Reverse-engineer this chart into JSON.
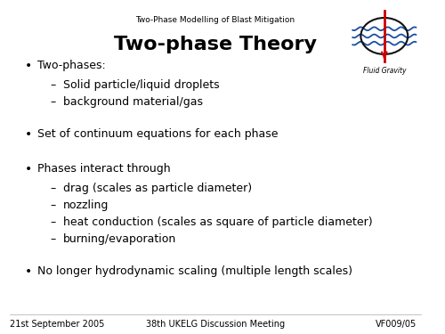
{
  "bg_color": "#ffffff",
  "header_text": "Two-Phase Modelling of Blast Mitigation",
  "title": "Two-phase Theory",
  "bullet_points": [
    {
      "level": 0,
      "text": "Two-phases:"
    },
    {
      "level": 1,
      "text": "Solid particle/liquid droplets"
    },
    {
      "level": 1,
      "text": "background material/gas"
    },
    {
      "level": 0,
      "text": "Set of continuum equations for each phase"
    },
    {
      "level": 0,
      "text": "Phases interact through"
    },
    {
      "level": 1,
      "text": "drag (scales as particle diameter)"
    },
    {
      "level": 1,
      "text": "nozzling"
    },
    {
      "level": 1,
      "text": "heat conduction (scales as square of particle diameter)"
    },
    {
      "level": 1,
      "text": "burning/evaporation"
    },
    {
      "level": 0,
      "text": "No longer hydrodynamic scaling (multiple length scales)"
    }
  ],
  "footer_left": "21st September 2005",
  "footer_center": "38th UKELG Discussion Meeting",
  "footer_right": "VF009/05",
  "title_fontsize": 16,
  "header_fontsize": 6.5,
  "bullet_fontsize": 9,
  "footer_fontsize": 7,
  "text_color": "#000000",
  "logo_blue": "#1a4fa0",
  "logo_red": "#cc0000"
}
